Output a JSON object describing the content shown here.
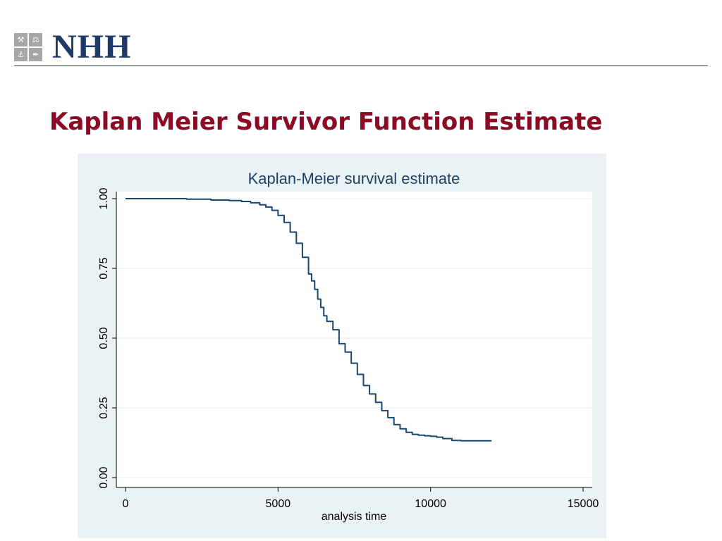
{
  "header": {
    "logo_text": "NHH",
    "logo_glyphs": [
      "⚒",
      "⚖",
      "⚓",
      "✒"
    ]
  },
  "slide": {
    "title": "Kaplan Meier Survivor Function Estimate"
  },
  "colors": {
    "slide_title": "#8b0a24",
    "brand": "#1f3a68",
    "panel_bg": "#eaf2f3",
    "curve": "#1a476f"
  },
  "chart_data": {
    "type": "line",
    "title": "Kaplan-Meier survival estimate",
    "xlabel": "analysis time",
    "ylabel": "",
    "xlim": [
      0,
      15000
    ],
    "ylim": [
      0,
      1
    ],
    "xticks": [
      0,
      5000,
      10000,
      15000
    ],
    "xtick_labels": [
      "0",
      "5000",
      "10000",
      "15000"
    ],
    "yticks": [
      0,
      0.25,
      0.5,
      0.75,
      1
    ],
    "ytick_labels": [
      "0.00",
      "0.25",
      "0.50",
      "0.75",
      "1.00"
    ],
    "grid": true,
    "step": true,
    "series": [
      {
        "x": [
          0,
          1200,
          2000,
          2800,
          3400,
          3800,
          4100,
          4400,
          4600,
          4800,
          5000,
          5200,
          5400,
          5600,
          5800,
          6000,
          6100,
          6200,
          6300,
          6400,
          6500,
          6600,
          6800,
          7000,
          7200,
          7400,
          7600,
          7800,
          8000,
          8200,
          8400,
          8600,
          8800,
          9000,
          9200,
          9400,
          9600,
          9800,
          10000,
          10200,
          10400,
          10700,
          11000,
          11500,
          12000
        ],
        "y": [
          1.0,
          1.0,
          0.998,
          0.995,
          0.993,
          0.99,
          0.985,
          0.978,
          0.97,
          0.958,
          0.94,
          0.915,
          0.88,
          0.84,
          0.79,
          0.73,
          0.705,
          0.675,
          0.64,
          0.61,
          0.58,
          0.56,
          0.53,
          0.48,
          0.45,
          0.41,
          0.37,
          0.33,
          0.3,
          0.27,
          0.24,
          0.215,
          0.19,
          0.175,
          0.162,
          0.155,
          0.152,
          0.15,
          0.148,
          0.145,
          0.14,
          0.133,
          0.132,
          0.132,
          0.132
        ]
      }
    ]
  }
}
